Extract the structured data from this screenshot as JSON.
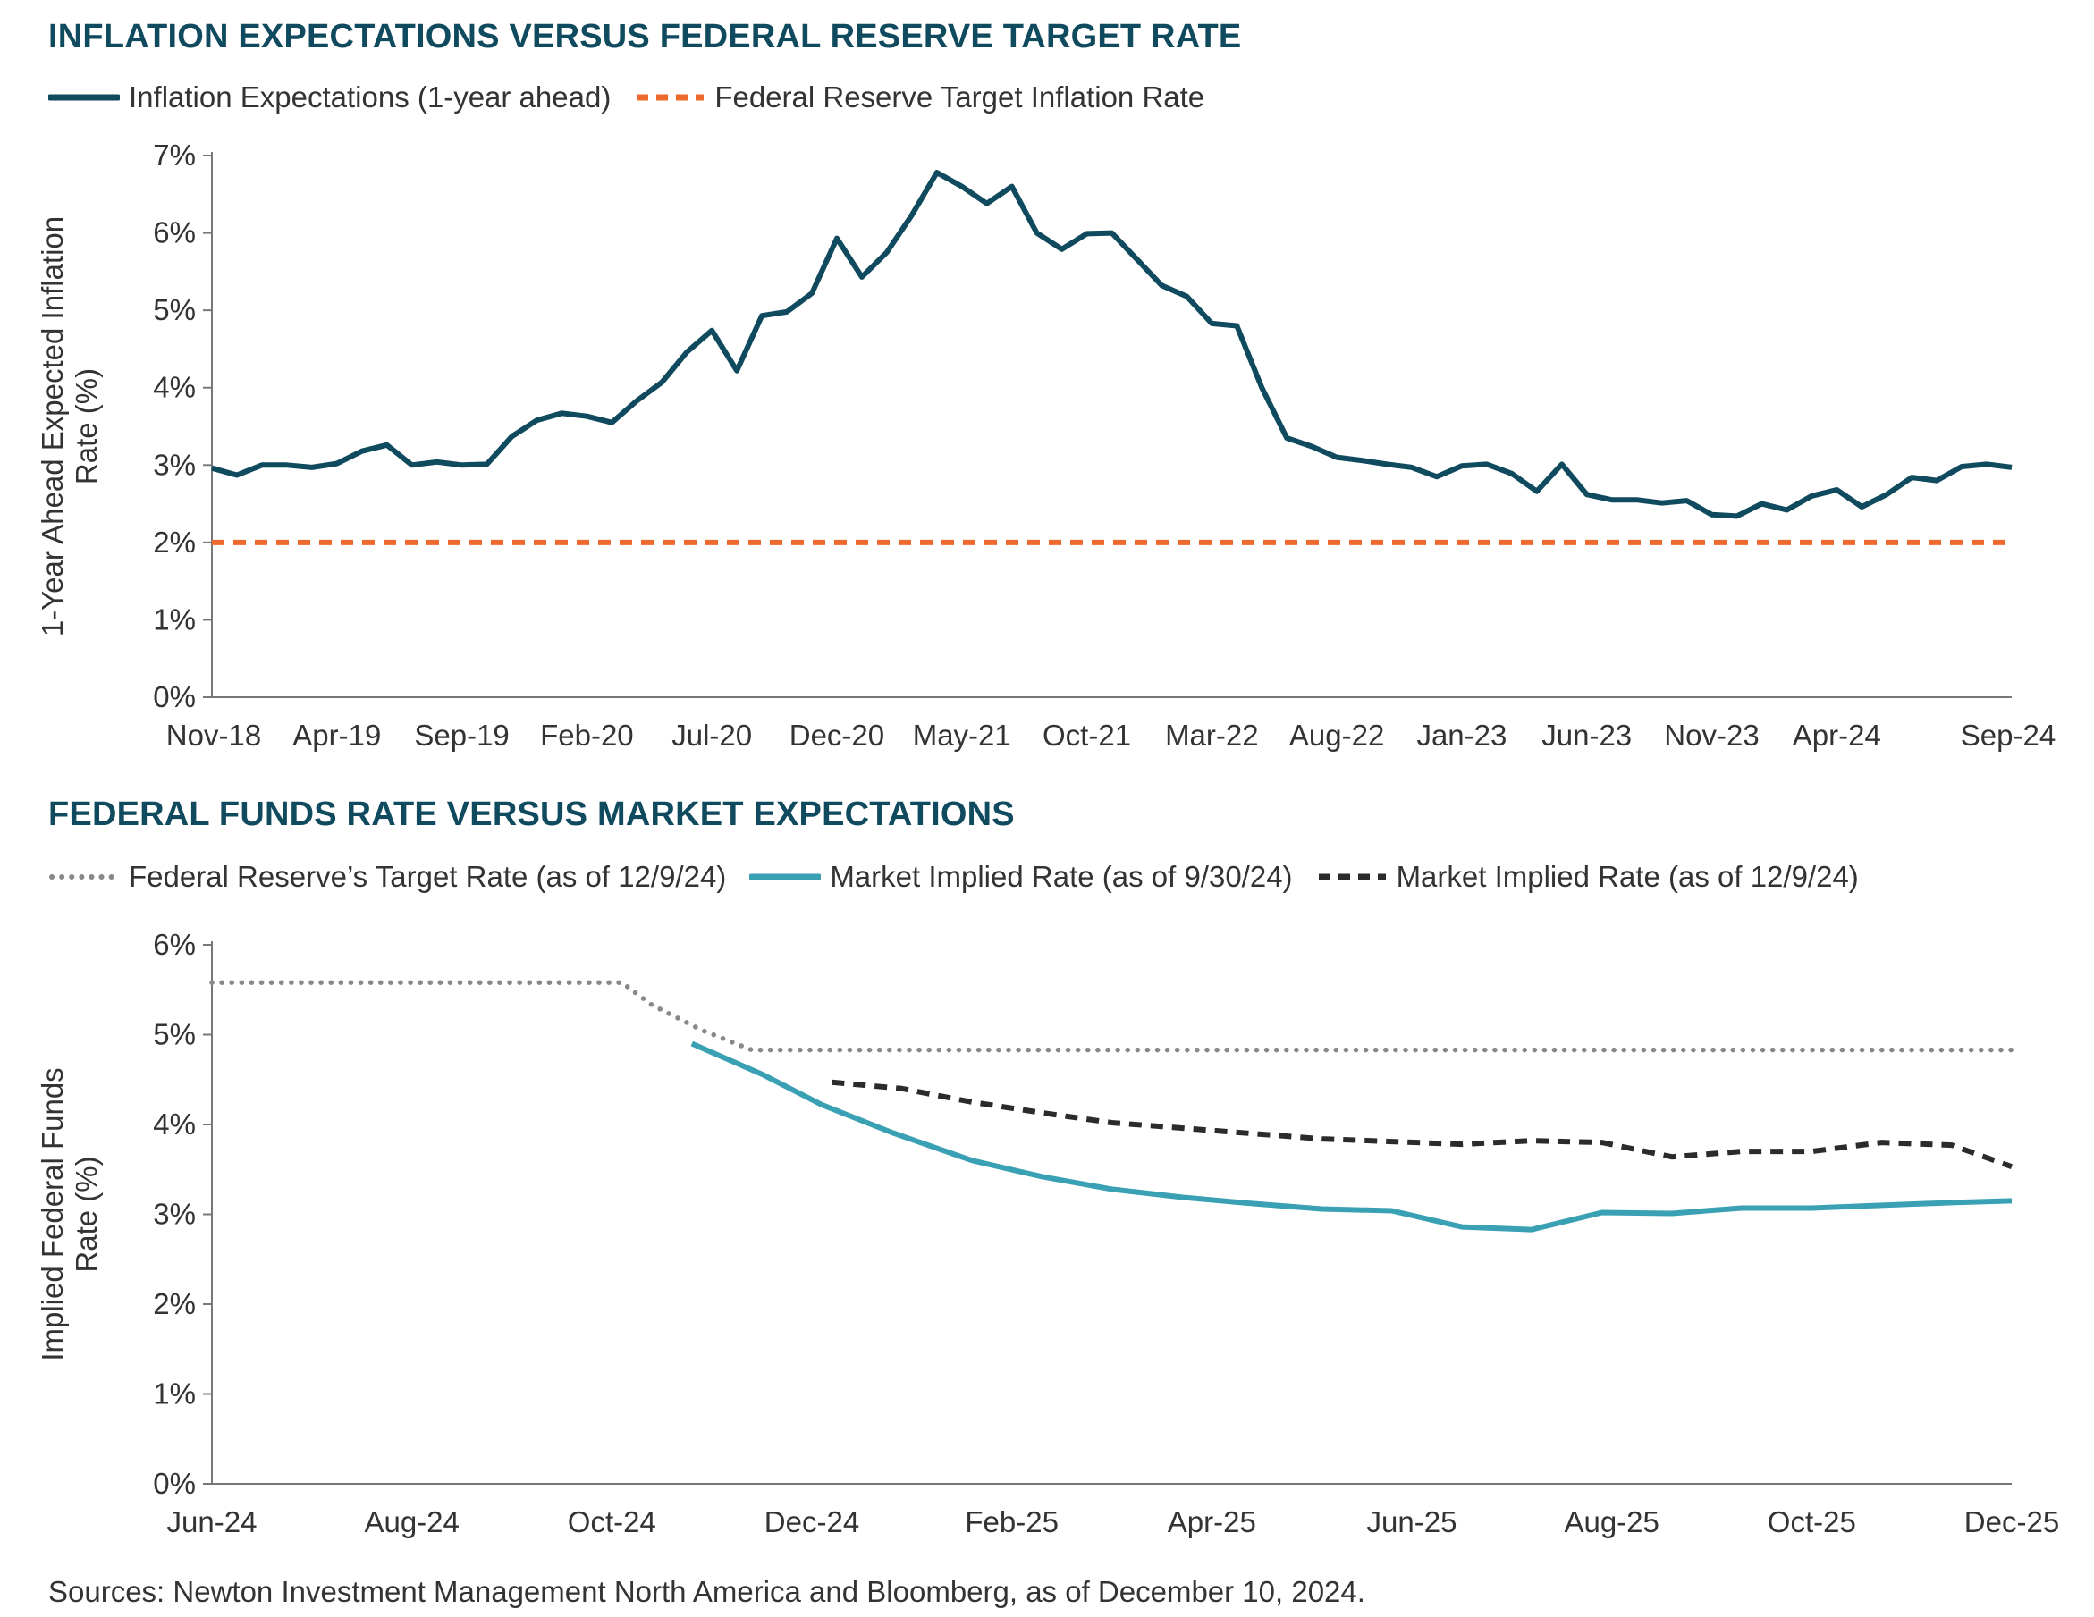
{
  "chart_data": [
    {
      "type": "line",
      "title": "INFLATION EXPECTATIONS VERSUS FEDERAL RESERVE TARGET RATE",
      "ylabel": [
        "1-Year Ahead Expected Inflation",
        "Rate (%)"
      ],
      "xlabel": "",
      "ylim": [
        0,
        7
      ],
      "yticks": [
        0,
        1,
        2,
        3,
        4,
        5,
        6,
        7
      ],
      "ytick_labels": [
        "0%",
        "1%",
        "2%",
        "3%",
        "4%",
        "5%",
        "6%",
        "7%"
      ],
      "xtick_labels": [
        "Nov-18",
        "Apr-19",
        "Sep-19",
        "Feb-20",
        "Jul-20",
        "Dec-20",
        "May-21",
        "Oct-21",
        "Mar-22",
        "Aug-22",
        "Jan-23",
        "Jun-23",
        "Nov-23",
        "Apr-24",
        "Sep-24"
      ],
      "grid": false,
      "legend_position": "top-left",
      "series": [
        {
          "name": "Inflation Expectations (1-year ahead)",
          "color": "#0f4a5e",
          "style": "solid",
          "values": [
            2.96,
            2.87,
            3.0,
            3.0,
            2.97,
            3.02,
            3.18,
            3.26,
            3.0,
            3.04,
            3.0,
            3.01,
            3.37,
            3.58,
            3.67,
            3.63,
            3.55,
            3.83,
            4.07,
            4.46,
            4.74,
            4.22,
            4.93,
            4.98,
            5.22,
            5.93,
            5.43,
            5.75,
            6.23,
            6.78,
            6.6,
            6.38,
            6.6,
            6.0,
            5.79,
            5.99,
            6.0,
            5.66,
            5.32,
            5.18,
            4.83,
            4.8,
            4.0,
            3.35,
            3.24,
            3.1,
            3.06,
            3.01,
            2.97,
            2.85,
            2.99,
            3.01,
            2.89,
            2.66,
            3.01,
            2.62,
            2.55,
            2.55,
            2.51,
            2.54,
            2.36,
            2.34,
            2.5,
            2.42,
            2.6,
            2.68,
            2.46,
            2.62,
            2.84,
            2.8,
            2.98,
            3.01,
            2.97
          ]
        },
        {
          "name": "Federal Reserve Target Inflation Rate",
          "color": "#ed6a2f",
          "style": "dashed",
          "values": [
            2.0,
            2.0
          ]
        }
      ]
    },
    {
      "type": "line",
      "title": "FEDERAL FUNDS RATE VERSUS MARKET EXPECTATIONS",
      "ylabel": [
        "Implied Federal Funds",
        "Rate (%)"
      ],
      "xlabel": "",
      "ylim": [
        0,
        6
      ],
      "yticks": [
        0,
        1,
        2,
        3,
        4,
        5,
        6
      ],
      "ytick_labels": [
        "0%",
        "1%",
        "2%",
        "3%",
        "4%",
        "5%",
        "6%"
      ],
      "xlim": [
        0,
        18
      ],
      "xticks": [
        0,
        2,
        4,
        6,
        8,
        10,
        12,
        14,
        16,
        18
      ],
      "xtick_labels": [
        "Jun-24",
        "Aug-24",
        "Oct-24",
        "Dec-24",
        "Feb-25",
        "Apr-25",
        "Jun-25",
        "Aug-25",
        "Oct-25",
        "Dec-25"
      ],
      "grid": false,
      "legend_position": "top-left",
      "series": [
        {
          "name": "Federal Reserve’s Target Rate (as of 12/9/24)",
          "color": "#888888",
          "style": "dotted",
          "points": [
            [
              0,
              5.58
            ],
            [
              4.1,
              5.58
            ],
            [
              4.4,
              5.33
            ],
            [
              4.9,
              5.05
            ],
            [
              5.4,
              4.83
            ],
            [
              18,
              4.83
            ]
          ]
        },
        {
          "name": "Market Implied Rate (as of 9/30/24)",
          "color": "#3aa0b3",
          "style": "solid",
          "points": [
            [
              4.8,
              4.9
            ],
            [
              5.5,
              4.56
            ],
            [
              6.1,
              4.22
            ],
            [
              6.8,
              3.91
            ],
            [
              7.6,
              3.6
            ],
            [
              8.3,
              3.42
            ],
            [
              9,
              3.28
            ],
            [
              9.7,
              3.19
            ],
            [
              10.4,
              3.12
            ],
            [
              11.1,
              3.06
            ],
            [
              11.8,
              3.04
            ],
            [
              12.5,
              2.86
            ],
            [
              13.2,
              2.83
            ],
            [
              13.9,
              3.02
            ],
            [
              14.6,
              3.01
            ],
            [
              15.3,
              3.07
            ],
            [
              16,
              3.07
            ],
            [
              16.7,
              3.1
            ],
            [
              17.4,
              3.13
            ],
            [
              18,
              3.15
            ]
          ]
        },
        {
          "name": "Market Implied Rate (as of 12/9/24)",
          "color": "#2b2b2b",
          "style": "dashed",
          "points": [
            [
              6.2,
              4.47
            ],
            [
              6.9,
              4.4
            ],
            [
              7.6,
              4.25
            ],
            [
              8.3,
              4.13
            ],
            [
              9,
              4.02
            ],
            [
              9.7,
              3.96
            ],
            [
              10.4,
              3.9
            ],
            [
              11.1,
              3.84
            ],
            [
              11.8,
              3.81
            ],
            [
              12.5,
              3.78
            ],
            [
              13.2,
              3.82
            ],
            [
              13.9,
              3.8
            ],
            [
              14.6,
              3.64
            ],
            [
              15.3,
              3.7
            ],
            [
              16,
              3.7
            ],
            [
              16.7,
              3.8
            ],
            [
              17.4,
              3.77
            ],
            [
              18,
              3.53
            ]
          ]
        }
      ]
    }
  ],
  "legend1": {
    "item1": "Inflation Expectations (1-year ahead)",
    "item2": "Federal Reserve Target Inflation Rate"
  },
  "legend2": {
    "item1": "Federal Reserve’s Target Rate (as of 12/9/24)",
    "item2": "Market Implied Rate (as of 9/30/24)",
    "item3": "Market Implied Rate (as of 12/9/24)"
  },
  "source": "Sources: Newton Investment Management North America and Bloomberg, as of December 10, 2024."
}
